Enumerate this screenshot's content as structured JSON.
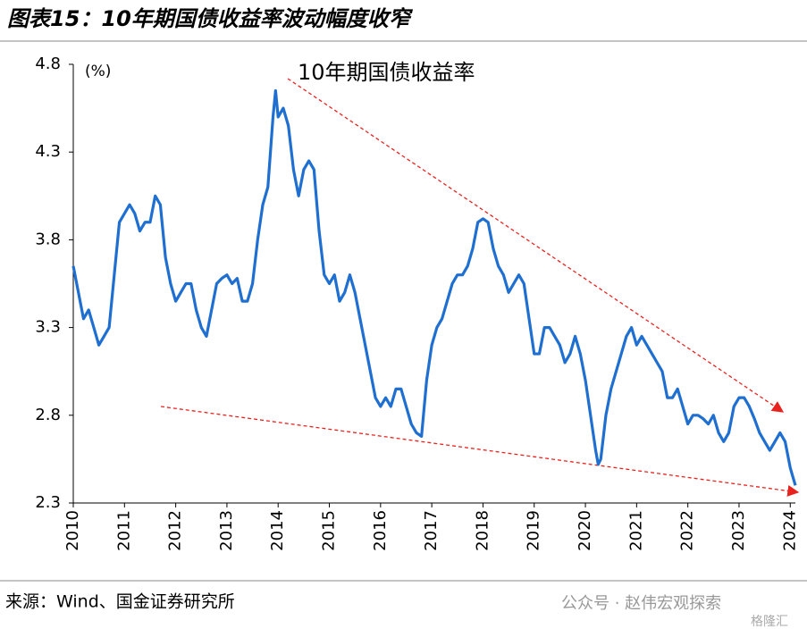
{
  "header": {
    "title": "图表15：10年期国债收益率波动幅度收窄"
  },
  "chart_data": {
    "type": "line",
    "unit_label": "(%)",
    "annotation": "10年期国债收益率",
    "grid": false,
    "xlim": [
      2010,
      2024.1
    ],
    "xticks": [
      2010,
      2011,
      2012,
      2013,
      2014,
      2015,
      2016,
      2017,
      2018,
      2019,
      2020,
      2021,
      2022,
      2023,
      2024
    ],
    "ylim": [
      2.3,
      4.8
    ],
    "yticks": [
      2.3,
      2.8,
      3.3,
      3.8,
      4.3,
      4.8
    ],
    "x": [
      2010.0,
      2010.1,
      2010.2,
      2010.3,
      2010.4,
      2010.5,
      2010.6,
      2010.7,
      2010.8,
      2010.9,
      2011.0,
      2011.1,
      2011.2,
      2011.3,
      2011.4,
      2011.5,
      2011.6,
      2011.7,
      2011.8,
      2011.9,
      2012.0,
      2012.1,
      2012.2,
      2012.3,
      2012.4,
      2012.5,
      2012.6,
      2012.7,
      2012.8,
      2012.9,
      2013.0,
      2013.1,
      2013.2,
      2013.3,
      2013.4,
      2013.5,
      2013.6,
      2013.7,
      2013.8,
      2013.9,
      2013.95,
      2014.0,
      2014.1,
      2014.2,
      2014.3,
      2014.4,
      2014.5,
      2014.6,
      2014.7,
      2014.8,
      2014.9,
      2015.0,
      2015.1,
      2015.2,
      2015.3,
      2015.4,
      2015.5,
      2015.6,
      2015.7,
      2015.8,
      2015.9,
      2016.0,
      2016.1,
      2016.2,
      2016.3,
      2016.4,
      2016.5,
      2016.6,
      2016.7,
      2016.8,
      2016.9,
      2017.0,
      2017.1,
      2017.2,
      2017.3,
      2017.4,
      2017.5,
      2017.6,
      2017.7,
      2017.8,
      2017.9,
      2018.0,
      2018.1,
      2018.2,
      2018.3,
      2018.4,
      2018.5,
      2018.6,
      2018.7,
      2018.8,
      2018.9,
      2019.0,
      2019.1,
      2019.2,
      2019.3,
      2019.4,
      2019.5,
      2019.6,
      2019.7,
      2019.8,
      2019.9,
      2020.0,
      2020.1,
      2020.2,
      2020.25,
      2020.3,
      2020.4,
      2020.5,
      2020.6,
      2020.7,
      2020.8,
      2020.9,
      2021.0,
      2021.1,
      2021.2,
      2021.3,
      2021.4,
      2021.5,
      2021.6,
      2021.7,
      2021.8,
      2021.9,
      2022.0,
      2022.1,
      2022.2,
      2022.3,
      2022.4,
      2022.5,
      2022.6,
      2022.7,
      2022.8,
      2022.9,
      2023.0,
      2023.1,
      2023.2,
      2023.3,
      2023.4,
      2023.5,
      2023.6,
      2023.7,
      2023.8,
      2023.9,
      2024.0,
      2024.05,
      2024.1
    ],
    "series": [
      {
        "name": "10年期国债收益率",
        "color": "#1f6fd1",
        "values": [
          3.65,
          3.5,
          3.35,
          3.4,
          3.3,
          3.2,
          3.25,
          3.3,
          3.6,
          3.9,
          3.95,
          4.0,
          3.95,
          3.85,
          3.9,
          3.9,
          4.05,
          4.0,
          3.7,
          3.55,
          3.45,
          3.5,
          3.55,
          3.55,
          3.4,
          3.3,
          3.25,
          3.4,
          3.55,
          3.58,
          3.6,
          3.55,
          3.58,
          3.45,
          3.45,
          3.55,
          3.8,
          4.0,
          4.1,
          4.5,
          4.65,
          4.5,
          4.55,
          4.45,
          4.2,
          4.05,
          4.2,
          4.25,
          4.2,
          3.85,
          3.6,
          3.55,
          3.6,
          3.45,
          3.5,
          3.6,
          3.5,
          3.35,
          3.2,
          3.05,
          2.9,
          2.85,
          2.9,
          2.85,
          2.95,
          2.95,
          2.85,
          2.75,
          2.7,
          2.68,
          3.0,
          3.2,
          3.3,
          3.35,
          3.45,
          3.55,
          3.6,
          3.6,
          3.65,
          3.75,
          3.9,
          3.92,
          3.9,
          3.75,
          3.65,
          3.6,
          3.5,
          3.55,
          3.6,
          3.55,
          3.35,
          3.15,
          3.15,
          3.3,
          3.3,
          3.25,
          3.2,
          3.1,
          3.15,
          3.25,
          3.15,
          3.0,
          2.8,
          2.6,
          2.52,
          2.55,
          2.8,
          2.95,
          3.05,
          3.15,
          3.25,
          3.3,
          3.2,
          3.25,
          3.2,
          3.15,
          3.1,
          3.05,
          2.9,
          2.9,
          2.95,
          2.85,
          2.75,
          2.8,
          2.8,
          2.78,
          2.75,
          2.8,
          2.7,
          2.65,
          2.7,
          2.85,
          2.9,
          2.9,
          2.85,
          2.78,
          2.7,
          2.65,
          2.6,
          2.65,
          2.7,
          2.65,
          2.5,
          2.45,
          2.4
        ]
      }
    ]
  },
  "footer": {
    "source": "来源：Wind、国金证券研究所",
    "watermark": "公众号 · 赵伟宏观探索",
    "logo": "格隆汇"
  }
}
